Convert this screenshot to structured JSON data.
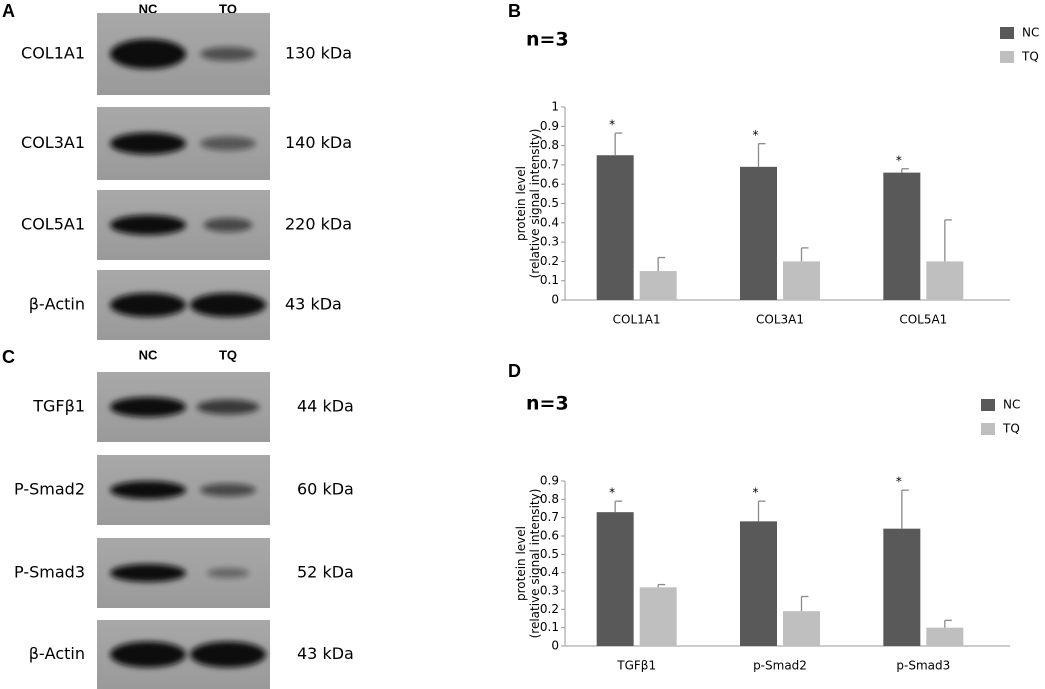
{
  "panels_blot": [
    {
      "letter": "A",
      "lanes": [
        "NC",
        "TQ"
      ],
      "rows": [
        {
          "label": "COL1A1",
          "size": "130 kDa"
        },
        {
          "label": "COL3A1",
          "size": "140 kDa"
        },
        {
          "label": "COL5A1",
          "size": "220 kDa"
        },
        {
          "label": "β-Actin",
          "size": "43 kDa"
        }
      ]
    },
    {
      "letter": "C",
      "lanes": [
        "NC",
        "TQ"
      ],
      "rows": [
        {
          "label": "TGFβ1",
          "size": "44 kDa"
        },
        {
          "label": "P-Smad2",
          "size": "60 kDa"
        },
        {
          "label": "P-Smad3",
          "size": "52 kDa"
        },
        {
          "label": "β-Actin",
          "size": "43 kDa"
        }
      ]
    }
  ],
  "chart_data": [
    {
      "type": "bar",
      "letter": "B",
      "title": "n=3",
      "ylabel": [
        "protein level",
        "(relative signal intensity)"
      ],
      "categories": [
        "COL1A1",
        "COL3A1",
        "COL5A1"
      ],
      "series": [
        {
          "name": "NC",
          "color": "#595959",
          "values": [
            0.75,
            0.69,
            0.66
          ],
          "errors": [
            0.115,
            0.12,
            0.02
          ],
          "annotations": [
            "*",
            "*",
            "*"
          ]
        },
        {
          "name": "TQ",
          "color": "#bfbfbf",
          "values": [
            0.15,
            0.2,
            0.2
          ],
          "errors": [
            0.07,
            0.07,
            0.215
          ]
        }
      ],
      "ylim": [
        0,
        1
      ],
      "yticks": [
        0,
        0.1,
        0.2,
        0.3,
        0.4,
        0.5,
        0.6,
        0.7,
        0.8,
        0.9,
        1
      ],
      "legend": "top-right"
    },
    {
      "type": "bar",
      "letter": "D",
      "title": "n=3",
      "ylabel": [
        "protein level",
        "(relative signal intensity)"
      ],
      "categories": [
        "TGFβ1",
        "p-Smad2",
        "p-Smad3"
      ],
      "series": [
        {
          "name": "NC",
          "color": "#595959",
          "values": [
            0.73,
            0.68,
            0.64
          ],
          "errors": [
            0.06,
            0.11,
            0.21
          ],
          "annotations": [
            "*",
            "*",
            "*"
          ]
        },
        {
          "name": "TQ",
          "color": "#bfbfbf",
          "values": [
            0.32,
            0.19,
            0.1
          ],
          "errors": [
            0.015,
            0.08,
            0.04
          ]
        }
      ],
      "ylim": [
        0,
        0.9
      ],
      "yticks": [
        0,
        0.1,
        0.2,
        0.3,
        0.4,
        0.5,
        0.6,
        0.7,
        0.8,
        0.9
      ],
      "legend": "top-right"
    }
  ]
}
